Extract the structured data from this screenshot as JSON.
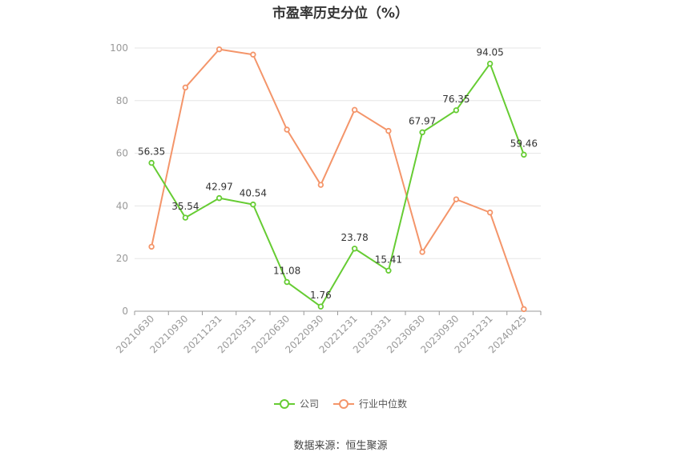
{
  "chart_data": {
    "type": "line",
    "title": "市盈率历史分位（%）",
    "categories": [
      "20210630",
      "20210930",
      "20211231",
      "20220331",
      "20220630",
      "20220930",
      "20221231",
      "20230331",
      "20230630",
      "20230930",
      "20231231",
      "20240425"
    ],
    "series": [
      {
        "name": "公司",
        "color": "#66cc33",
        "values": [
          56.35,
          35.54,
          42.97,
          40.54,
          11.08,
          1.76,
          23.78,
          15.41,
          67.97,
          76.35,
          94.05,
          59.46
        ],
        "labels": [
          "56.35",
          "35.54",
          "42.97",
          "40.54",
          "11.08",
          "1.76",
          "23.78",
          "15.41",
          "67.97",
          "76.35",
          "94.05",
          "59.46"
        ]
      },
      {
        "name": "行业中位数",
        "color": "#f4956a",
        "values": [
          24.5,
          85,
          99.5,
          97.5,
          69,
          48,
          76.5,
          68.5,
          22.5,
          42.5,
          37.5,
          0.8
        ]
      }
    ],
    "ylim": [
      0,
      100
    ],
    "yticks": [
      0,
      20,
      40,
      60,
      80,
      100
    ],
    "grid": true,
    "legend_position": "bottom-center"
  },
  "source_text": "数据来源：恒生聚源"
}
